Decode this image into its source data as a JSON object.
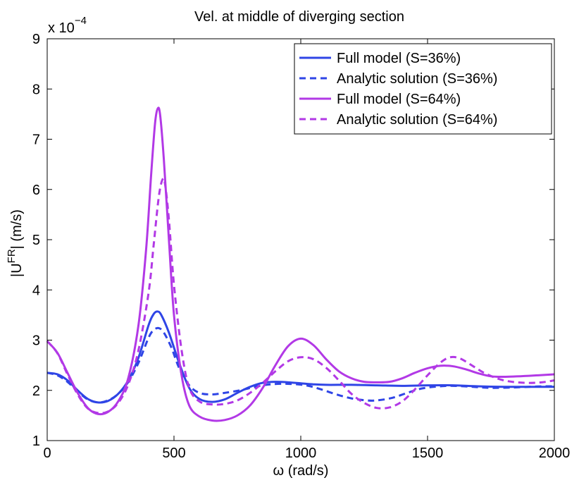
{
  "chart_data": {
    "type": "line",
    "title": "Vel. at middle of diverging section",
    "xlabel": "ω (rad/s)",
    "ylabel_prefix": "|U",
    "ylabel_super": "FR",
    "ylabel_suffix": "| (m/s)",
    "exponent_base": "x 10",
    "exponent_power": "−4",
    "xlim": [
      0,
      2000
    ],
    "ylim": [
      1,
      9
    ],
    "xticks": [
      0,
      500,
      1000,
      1500,
      2000
    ],
    "yticks": [
      1,
      2,
      3,
      4,
      5,
      6,
      7,
      8,
      9
    ],
    "grid": false,
    "legend_position": "top-right",
    "series": [
      {
        "name": "Full model (S=36%)",
        "color": "#2f45e6",
        "dash": "solid",
        "points": [
          [
            0,
            2.35
          ],
          [
            40,
            2.32
          ],
          [
            80,
            2.2
          ],
          [
            120,
            2.0
          ],
          [
            160,
            1.83
          ],
          [
            200,
            1.76
          ],
          [
            240,
            1.79
          ],
          [
            280,
            1.93
          ],
          [
            320,
            2.2
          ],
          [
            360,
            2.65
          ],
          [
            400,
            3.3
          ],
          [
            420,
            3.52
          ],
          [
            435,
            3.57
          ],
          [
            450,
            3.5
          ],
          [
            480,
            3.15
          ],
          [
            520,
            2.55
          ],
          [
            560,
            2.05
          ],
          [
            600,
            1.83
          ],
          [
            650,
            1.77
          ],
          [
            700,
            1.82
          ],
          [
            750,
            1.95
          ],
          [
            800,
            2.07
          ],
          [
            850,
            2.15
          ],
          [
            900,
            2.17
          ],
          [
            950,
            2.16
          ],
          [
            1000,
            2.14
          ],
          [
            1050,
            2.12
          ],
          [
            1100,
            2.11
          ],
          [
            1200,
            2.11
          ],
          [
            1300,
            2.1
          ],
          [
            1400,
            2.09
          ],
          [
            1500,
            2.1
          ],
          [
            1600,
            2.1
          ],
          [
            1700,
            2.08
          ],
          [
            1800,
            2.07
          ],
          [
            1900,
            2.07
          ],
          [
            2000,
            2.07
          ]
        ]
      },
      {
        "name": "Analytic solution (S=36%)",
        "color": "#2f45e6",
        "dash": "dashed",
        "points": [
          [
            0,
            2.35
          ],
          [
            40,
            2.3
          ],
          [
            80,
            2.17
          ],
          [
            120,
            1.98
          ],
          [
            160,
            1.82
          ],
          [
            200,
            1.76
          ],
          [
            240,
            1.8
          ],
          [
            280,
            1.93
          ],
          [
            320,
            2.17
          ],
          [
            360,
            2.55
          ],
          [
            400,
            3.05
          ],
          [
            420,
            3.2
          ],
          [
            440,
            3.24
          ],
          [
            460,
            3.15
          ],
          [
            490,
            2.85
          ],
          [
            520,
            2.45
          ],
          [
            560,
            2.1
          ],
          [
            600,
            1.95
          ],
          [
            650,
            1.92
          ],
          [
            700,
            1.95
          ],
          [
            760,
            2.0
          ],
          [
            820,
            2.07
          ],
          [
            880,
            2.12
          ],
          [
            950,
            2.13
          ],
          [
            1020,
            2.1
          ],
          [
            1080,
            2.02
          ],
          [
            1140,
            1.92
          ],
          [
            1200,
            1.84
          ],
          [
            1260,
            1.8
          ],
          [
            1300,
            1.8
          ],
          [
            1360,
            1.85
          ],
          [
            1420,
            1.95
          ],
          [
            1480,
            2.04
          ],
          [
            1550,
            2.08
          ],
          [
            1600,
            2.09
          ],
          [
            1680,
            2.07
          ],
          [
            1750,
            2.05
          ],
          [
            1850,
            2.06
          ],
          [
            1950,
            2.08
          ],
          [
            2000,
            2.08
          ]
        ]
      },
      {
        "name": "Full model (S=64%)",
        "color": "#b239e6",
        "dash": "solid",
        "points": [
          [
            0,
            2.98
          ],
          [
            40,
            2.75
          ],
          [
            80,
            2.35
          ],
          [
            120,
            1.95
          ],
          [
            160,
            1.65
          ],
          [
            200,
            1.53
          ],
          [
            240,
            1.57
          ],
          [
            280,
            1.78
          ],
          [
            320,
            2.25
          ],
          [
            360,
            3.3
          ],
          [
            390,
            4.8
          ],
          [
            410,
            6.3
          ],
          [
            425,
            7.3
          ],
          [
            435,
            7.6
          ],
          [
            445,
            7.5
          ],
          [
            460,
            6.6
          ],
          [
            480,
            5.0
          ],
          [
            500,
            3.5
          ],
          [
            530,
            2.3
          ],
          [
            560,
            1.7
          ],
          [
            600,
            1.48
          ],
          [
            650,
            1.4
          ],
          [
            700,
            1.41
          ],
          [
            750,
            1.5
          ],
          [
            800,
            1.7
          ],
          [
            850,
            2.05
          ],
          [
            900,
            2.5
          ],
          [
            950,
            2.88
          ],
          [
            1000,
            3.03
          ],
          [
            1050,
            2.9
          ],
          [
            1100,
            2.62
          ],
          [
            1150,
            2.38
          ],
          [
            1200,
            2.24
          ],
          [
            1250,
            2.17
          ],
          [
            1300,
            2.16
          ],
          [
            1350,
            2.17
          ],
          [
            1400,
            2.24
          ],
          [
            1450,
            2.35
          ],
          [
            1500,
            2.44
          ],
          [
            1550,
            2.49
          ],
          [
            1600,
            2.48
          ],
          [
            1650,
            2.42
          ],
          [
            1700,
            2.34
          ],
          [
            1750,
            2.28
          ],
          [
            1800,
            2.27
          ],
          [
            1900,
            2.29
          ],
          [
            2000,
            2.32
          ]
        ]
      },
      {
        "name": "Analytic solution (S=64%)",
        "color": "#b239e6",
        "dash": "dashed",
        "points": [
          [
            0,
            2.98
          ],
          [
            40,
            2.74
          ],
          [
            80,
            2.32
          ],
          [
            120,
            1.92
          ],
          [
            160,
            1.64
          ],
          [
            200,
            1.55
          ],
          [
            240,
            1.58
          ],
          [
            280,
            1.75
          ],
          [
            320,
            2.12
          ],
          [
            360,
            2.8
          ],
          [
            400,
            3.95
          ],
          [
            420,
            4.9
          ],
          [
            440,
            5.85
          ],
          [
            455,
            6.2
          ],
          [
            465,
            6.1
          ],
          [
            480,
            5.4
          ],
          [
            500,
            4.1
          ],
          [
            530,
            2.8
          ],
          [
            560,
            2.05
          ],
          [
            600,
            1.78
          ],
          [
            650,
            1.72
          ],
          [
            700,
            1.73
          ],
          [
            750,
            1.8
          ],
          [
            800,
            1.95
          ],
          [
            850,
            2.15
          ],
          [
            900,
            2.38
          ],
          [
            950,
            2.58
          ],
          [
            1000,
            2.66
          ],
          [
            1050,
            2.62
          ],
          [
            1100,
            2.45
          ],
          [
            1150,
            2.2
          ],
          [
            1200,
            1.93
          ],
          [
            1250,
            1.75
          ],
          [
            1300,
            1.65
          ],
          [
            1350,
            1.66
          ],
          [
            1400,
            1.78
          ],
          [
            1450,
            2.02
          ],
          [
            1500,
            2.3
          ],
          [
            1550,
            2.55
          ],
          [
            1590,
            2.66
          ],
          [
            1630,
            2.63
          ],
          [
            1680,
            2.48
          ],
          [
            1730,
            2.33
          ],
          [
            1800,
            2.2
          ],
          [
            1880,
            2.15
          ],
          [
            1950,
            2.16
          ],
          [
            2000,
            2.2
          ]
        ]
      }
    ]
  }
}
